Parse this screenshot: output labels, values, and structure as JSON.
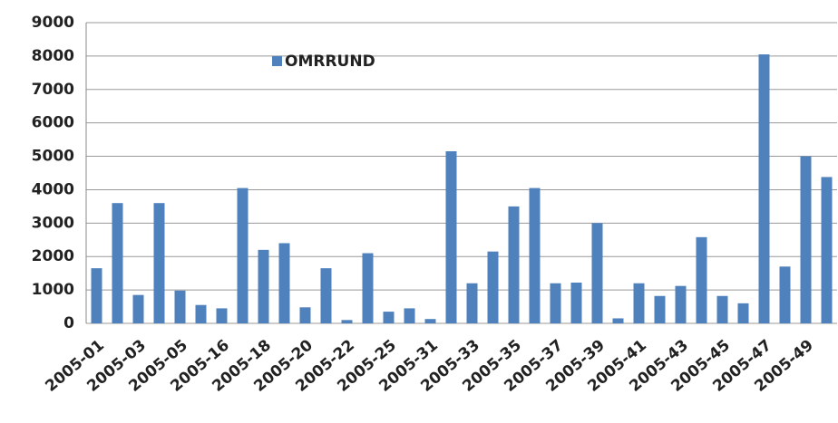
{
  "chart_data": {
    "type": "bar",
    "categories": [
      "2005-01",
      null,
      "2005-03",
      null,
      "2005-05",
      null,
      "2005-16",
      null,
      "2005-18",
      null,
      "2005-20",
      null,
      "2005-22",
      null,
      "2005-25",
      null,
      "2005-31",
      null,
      "2005-33",
      null,
      "2005-35",
      null,
      "2005-37",
      null,
      "2005-39",
      null,
      "2005-41",
      null,
      "2005-43",
      null,
      "2005-45",
      null,
      "2005-47",
      null,
      "2005-49",
      null
    ],
    "series": [
      {
        "name": "OMRRUND",
        "color": "#4f81bd",
        "values": [
          1650,
          3600,
          850,
          3600,
          980,
          550,
          450,
          4050,
          2200,
          2400,
          480,
          1650,
          100,
          2100,
          350,
          450,
          130,
          5150,
          1200,
          2150,
          3500,
          4050,
          1200,
          1220,
          3000,
          150,
          1200,
          820,
          1120,
          2580,
          820,
          600,
          8050,
          1700,
          5000,
          4380
        ]
      }
    ],
    "ylim": [
      0,
      9000
    ],
    "yticks": [
      0,
      1000,
      2000,
      3000,
      4000,
      5000,
      6000,
      7000,
      8000,
      9000
    ],
    "grid": true,
    "legend": "top"
  }
}
